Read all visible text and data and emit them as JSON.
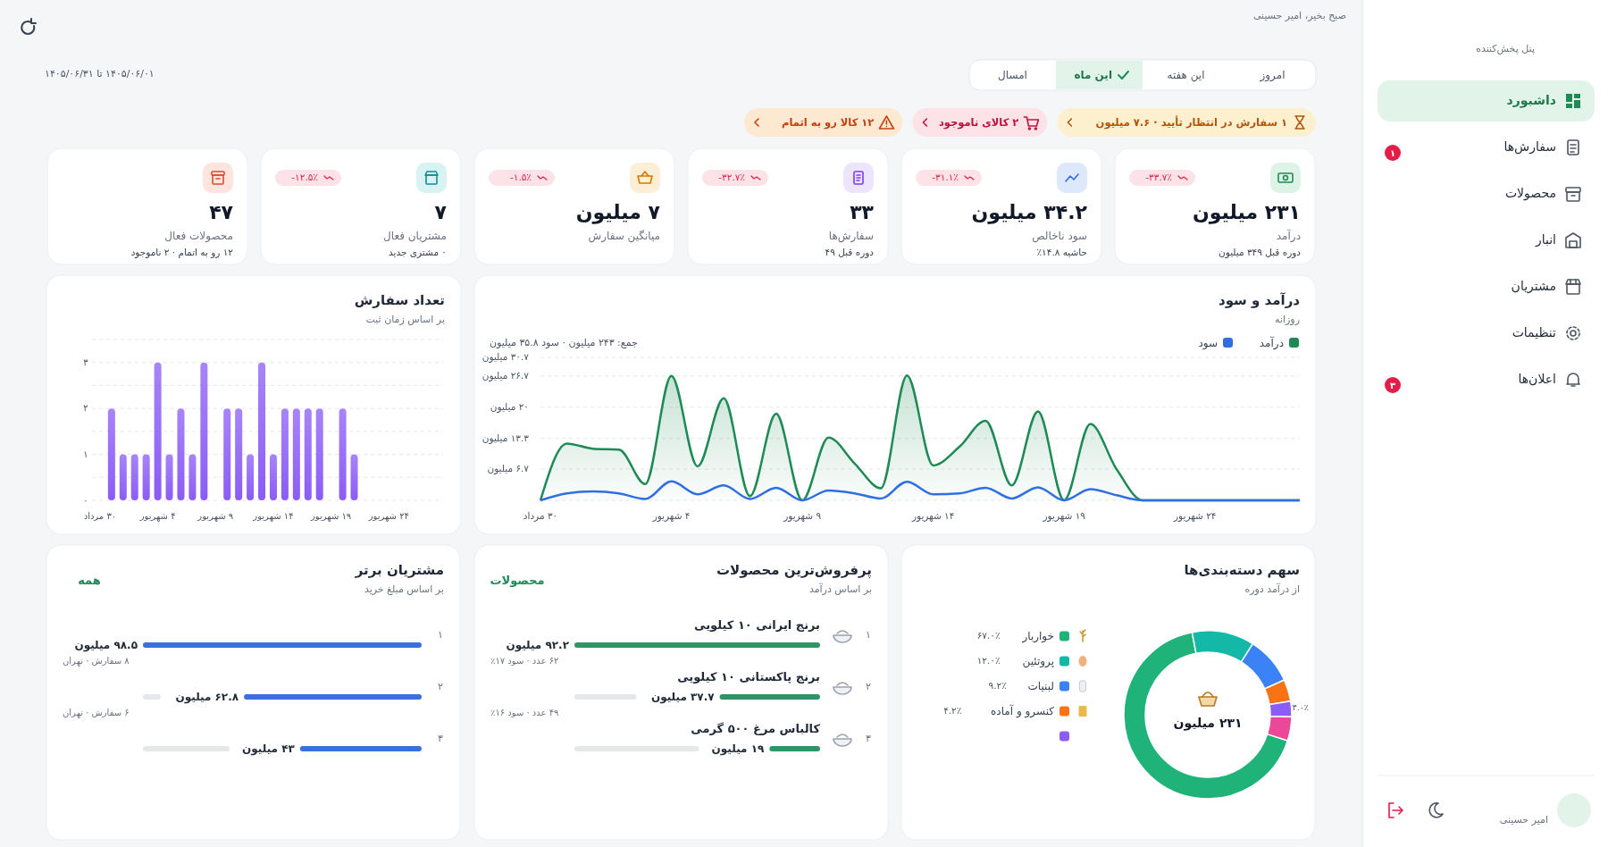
{
  "chart_data": [
    {
      "type": "other",
      "subtitle": "پنل پخش‌کننده",
      "annotations": [
        "داشبورد",
        "سفارش‌ها",
        "محصولات",
        "انبار",
        "مشتریان",
        "تنظیمات",
        "اعلان‌ها",
        "۱",
        "۳",
        "امیر حسینی"
      ]
    },
    {
      "type": "other",
      "subtitle": "صبح بخیر، امیر حسینی",
      "annotations": [
        "۱۴۰۵/۰۶/۰۱ تا ۱۴۰۵/۰۶/۳۱",
        "امروز",
        "این هفته",
        "این ماه",
        "امسال",
        "۱ سفارش در انتظار تأیید · ۷.۶ میلیون",
        "۲ کالای ناموجود",
        "۱۲ کالا رو به اتمام"
      ]
    },
    {
      "type": "other",
      "title": "درآمد",
      "subtitle": "دوره قبل ۳۴۹ میلیون",
      "annotations": [
        "۲۳۱ میلیون",
        "-۳۳.۷٪"
      ]
    },
    {
      "type": "other",
      "title": "سود ناخالص",
      "subtitle": "حاشیه ۱۴.۸٪",
      "annotations": [
        "۳۴.۲ میلیون",
        "-۳۱.۱٪"
      ]
    },
    {
      "type": "other",
      "title": "سفارش‌ها",
      "subtitle": "دوره قبل ۴۹",
      "annotations": [
        "۳۳",
        "-۳۲.۷٪"
      ]
    },
    {
      "type": "other",
      "title": "میانگین سفارش",
      "annotations": [
        "۷ میلیون",
        "-۱.۵٪"
      ]
    },
    {
      "type": "other",
      "title": "مشتریان فعال",
      "subtitle": "۰ مشتری جدید",
      "annotations": [
        "۷",
        "-۱۲.۵٪"
      ]
    },
    {
      "type": "other",
      "title": "محصولات فعال",
      "subtitle": "۱۲ رو به اتمام · ۲ ناموجود",
      "annotations": [
        "۴۷"
      ]
    },
    {
      "type": "line",
      "title": "درآمد و سود",
      "subtitle": "روزانه",
      "legend": "top right",
      "grid": "y",
      "categories": [
        "۳۰ مرداد",
        null,
        null,
        null,
        null,
        "۴ شهریور",
        null,
        null,
        null,
        null,
        "۹ شهریور",
        null,
        null,
        null,
        null,
        "۱۴ شهریور",
        null,
        null,
        null,
        null,
        "۱۹ شهریور",
        null,
        null,
        null,
        null,
        "۲۴ شهریور",
        null,
        null,
        null,
        null
      ],
      "series": [
        {
          "name": "درآمد",
          "type": "area",
          "color": "#1e8a55",
          "values": [
            0,
            12.2,
            11.1,
            10.9,
            3.5,
            26.7,
            7.3,
            21.9,
            0.9,
            18.6,
            0,
            13.5,
            7.9,
            2.6,
            26.8,
            7.5,
            11.5,
            17.1,
            3.2,
            19.1,
            0,
            16.4,
            6.7,
            0,
            0,
            0,
            0,
            0,
            0,
            0
          ]
        },
        {
          "name": "سود",
          "type": "line",
          "color": "#2f6fe4",
          "values": [
            0,
            1.5,
            1.9,
            1.5,
            0.3,
            4.1,
            1.3,
            3.2,
            0.3,
            2.7,
            0,
            2.1,
            1.5,
            0.4,
            4.0,
            1.3,
            1.5,
            2.7,
            0.4,
            2.8,
            0,
            2.4,
            1.1,
            0,
            0,
            0,
            0,
            0,
            0,
            0
          ]
        }
      ],
      "ylim": [
        0,
        30.7
      ],
      "yticks": [
        {
          "value": 0,
          "label": null
        },
        {
          "value": 6.7,
          "label": "۶.۷ میلیون"
        },
        {
          "value": 13.3,
          "label": "۱۳.۳ میلیون"
        },
        {
          "value": 20,
          "label": "۲۰ میلیون"
        },
        {
          "value": 26.7,
          "label": "۲۶.۷ میلیون"
        },
        {
          "value": 30.7,
          "label": "۳۰.۷ میلیون"
        }
      ],
      "annotations": [
        "جمع: ۲۴۳ میلیون · سود ۳۵.۸ میلیون"
      ]
    },
    {
      "type": "bar",
      "title": "تعداد سفارش",
      "subtitle": "بر اساس زمان ثبت",
      "grid": "y",
      "color": "#8b5cf6",
      "categories": [
        "۳۰ مرداد",
        null,
        null,
        null,
        null,
        "۴ شهریور",
        null,
        null,
        null,
        null,
        "۹ شهریور",
        null,
        null,
        null,
        null,
        "۱۴ شهریور",
        null,
        null,
        null,
        null,
        "۱۹ شهریور",
        null,
        null,
        null,
        null,
        "۲۴ شهریور",
        null,
        null,
        null,
        null
      ],
      "values": [
        0,
        2,
        1,
        1,
        1,
        3,
        1,
        2,
        1,
        3,
        0,
        2,
        2,
        1,
        3,
        1,
        2,
        2,
        2,
        2,
        0,
        2,
        1,
        0,
        0,
        0,
        0,
        0,
        0,
        0
      ],
      "ylim": [
        0,
        3.5
      ],
      "yticks": [
        {
          "value": 0,
          "label": "۰"
        },
        {
          "value": 0.5,
          "label": null
        },
        {
          "value": 1,
          "label": "۱"
        },
        {
          "value": 1.5,
          "label": null
        },
        {
          "value": 2,
          "label": "۲"
        },
        {
          "value": 2.5,
          "label": null
        },
        {
          "value": 3,
          "label": "۳"
        },
        {
          "value": 3.5,
          "label": null
        }
      ]
    },
    {
      "type": "donut",
      "title": "سهم دسته‌بندی‌ها",
      "subtitle": "از درآمد دوره",
      "legend": "left",
      "categories": [
        "خواربار",
        "پروتئین",
        "لبنیات",
        "کنسرو و آماده",
        null,
        null
      ],
      "values": [
        67.0,
        12.0,
        9.2,
        4.2,
        3.0,
        4.6
      ],
      "colors": [
        "#1fb37a",
        "#14b8a6",
        "#3b82f6",
        "#f97316",
        "#8b5cf6",
        "#ec4899"
      ],
      "value_labels": [
        "۶۷.۰٪",
        "۱۲.۰٪",
        "۹.۲٪",
        "۴.۲٪",
        "۳.۰٪",
        null
      ],
      "annotations": [
        "۲۳۱ میلیون"
      ]
    },
    {
      "type": "bar",
      "orientation": "horizontal",
      "title": "پرفروش‌ترین محصولات",
      "subtitle": "بر اساس درآمد",
      "color": "#2f9466",
      "categories": [
        "برنج ایرانی ۱۰ کیلویی",
        "برنج پاکستانی ۱۰ کیلویی",
        "کالباس مرغ ۵۰۰ گرمی"
      ],
      "values": [
        92.2,
        37.7,
        19
      ],
      "value_labels": [
        "۹۲.۲ میلیون",
        "۳۷.۷ میلیون",
        "۱۹ میلیون"
      ],
      "annotations": [
        "محصولات",
        "۱",
        "۲",
        "۳",
        "۶۲ عدد · سود ۱۷٪",
        "۴۹ عدد · سود ۱۶٪"
      ]
    },
    {
      "type": "bar",
      "orientation": "horizontal",
      "title": "مشتریان برتر",
      "subtitle": "بر اساس مبلغ خرید",
      "color": "#3b6fe0",
      "categories": [
        null,
        null,
        null
      ],
      "values": [
        98.5,
        62.8,
        43
      ],
      "value_labels": [
        "۹۸.۵ میلیون",
        "۶۲.۸ میلیون",
        "۴۳ میلیون"
      ],
      "annotations": [
        "همه",
        "۱",
        "۲",
        "۳",
        "۸ سفارش · تهران",
        "۶ سفارش · تهران"
      ]
    }
  ]
}
